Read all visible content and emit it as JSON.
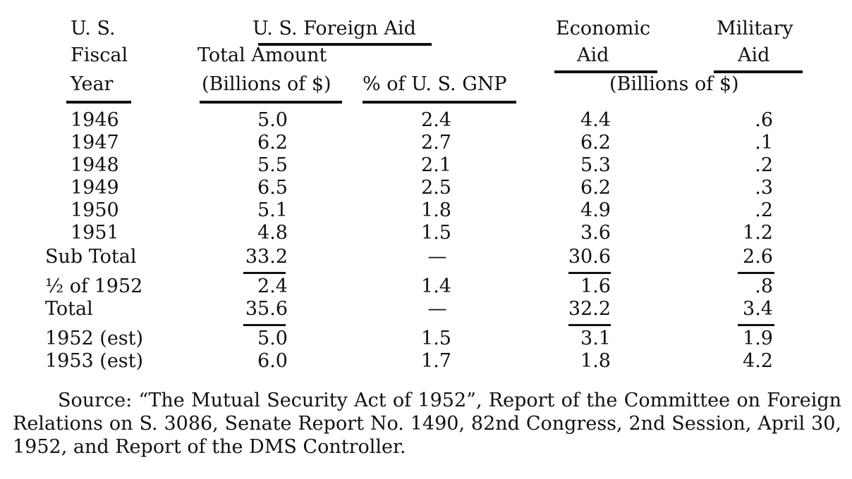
{
  "headers": {
    "fiscal_year": [
      "U. S.",
      "Fiscal",
      "Year"
    ],
    "us_foreign_aid": "U. S. Foreign Aid",
    "total_amount": [
      "Total Amount",
      "(Billions of $)"
    ],
    "pct_gnp": "% of U. S. GNP",
    "economic_aid": [
      "Economic",
      "Aid"
    ],
    "military_aid": [
      "Military",
      "Aid"
    ],
    "billions_of": "(Billions of $)"
  },
  "rows": [
    {
      "year": "1946",
      "total": "5.0",
      "pct": "2.4",
      "econ": "4.4",
      "mil": ".6"
    },
    {
      "year": "1947",
      "total": "6.2",
      "pct": "2.7",
      "econ": "6.2",
      "mil": ".1"
    },
    {
      "year": "1948",
      "total": "5.5",
      "pct": "2.1",
      "econ": "5.3",
      "mil": ".2"
    },
    {
      "year": "1949",
      "total": "6.5",
      "pct": "2.5",
      "econ": "6.2",
      "mil": ".3"
    },
    {
      "year": "1950",
      "total": "5.1",
      "pct": "1.8",
      "econ": "4.9",
      "mil": ".2"
    },
    {
      "year": "1951",
      "total": "4.8",
      "pct": "1.5",
      "econ": "3.6",
      "mil": "1.2"
    },
    {
      "year": "Sub Total",
      "total": "33.2",
      "pct": "—",
      "econ": "30.6",
      "mil": "2.6"
    },
    {
      "year": "½ of 1952",
      "total": "2.4",
      "pct": "1.4",
      "econ": "1.6",
      "mil": ".8"
    },
    {
      "year": "Total",
      "total": "35.6",
      "pct": "—",
      "econ": "32.2",
      "mil": "3.4"
    },
    {
      "year": "1952 (est)",
      "total": "5.0",
      "pct": "1.5",
      "econ": "3.1",
      "mil": "1.9"
    },
    {
      "year": "1953 (est)",
      "total": "6.0",
      "pct": "1.7",
      "econ": "1.8",
      "mil": "4.2"
    }
  ],
  "source_text": "Source: “The Mutual Security Act of 1952”, Report of the Committee on Foreign Relations on S. 3086, Senate Report No. 1490, 82nd Congress, 2nd Session, April 30, 1952, and Report of the DMS Controller."
}
